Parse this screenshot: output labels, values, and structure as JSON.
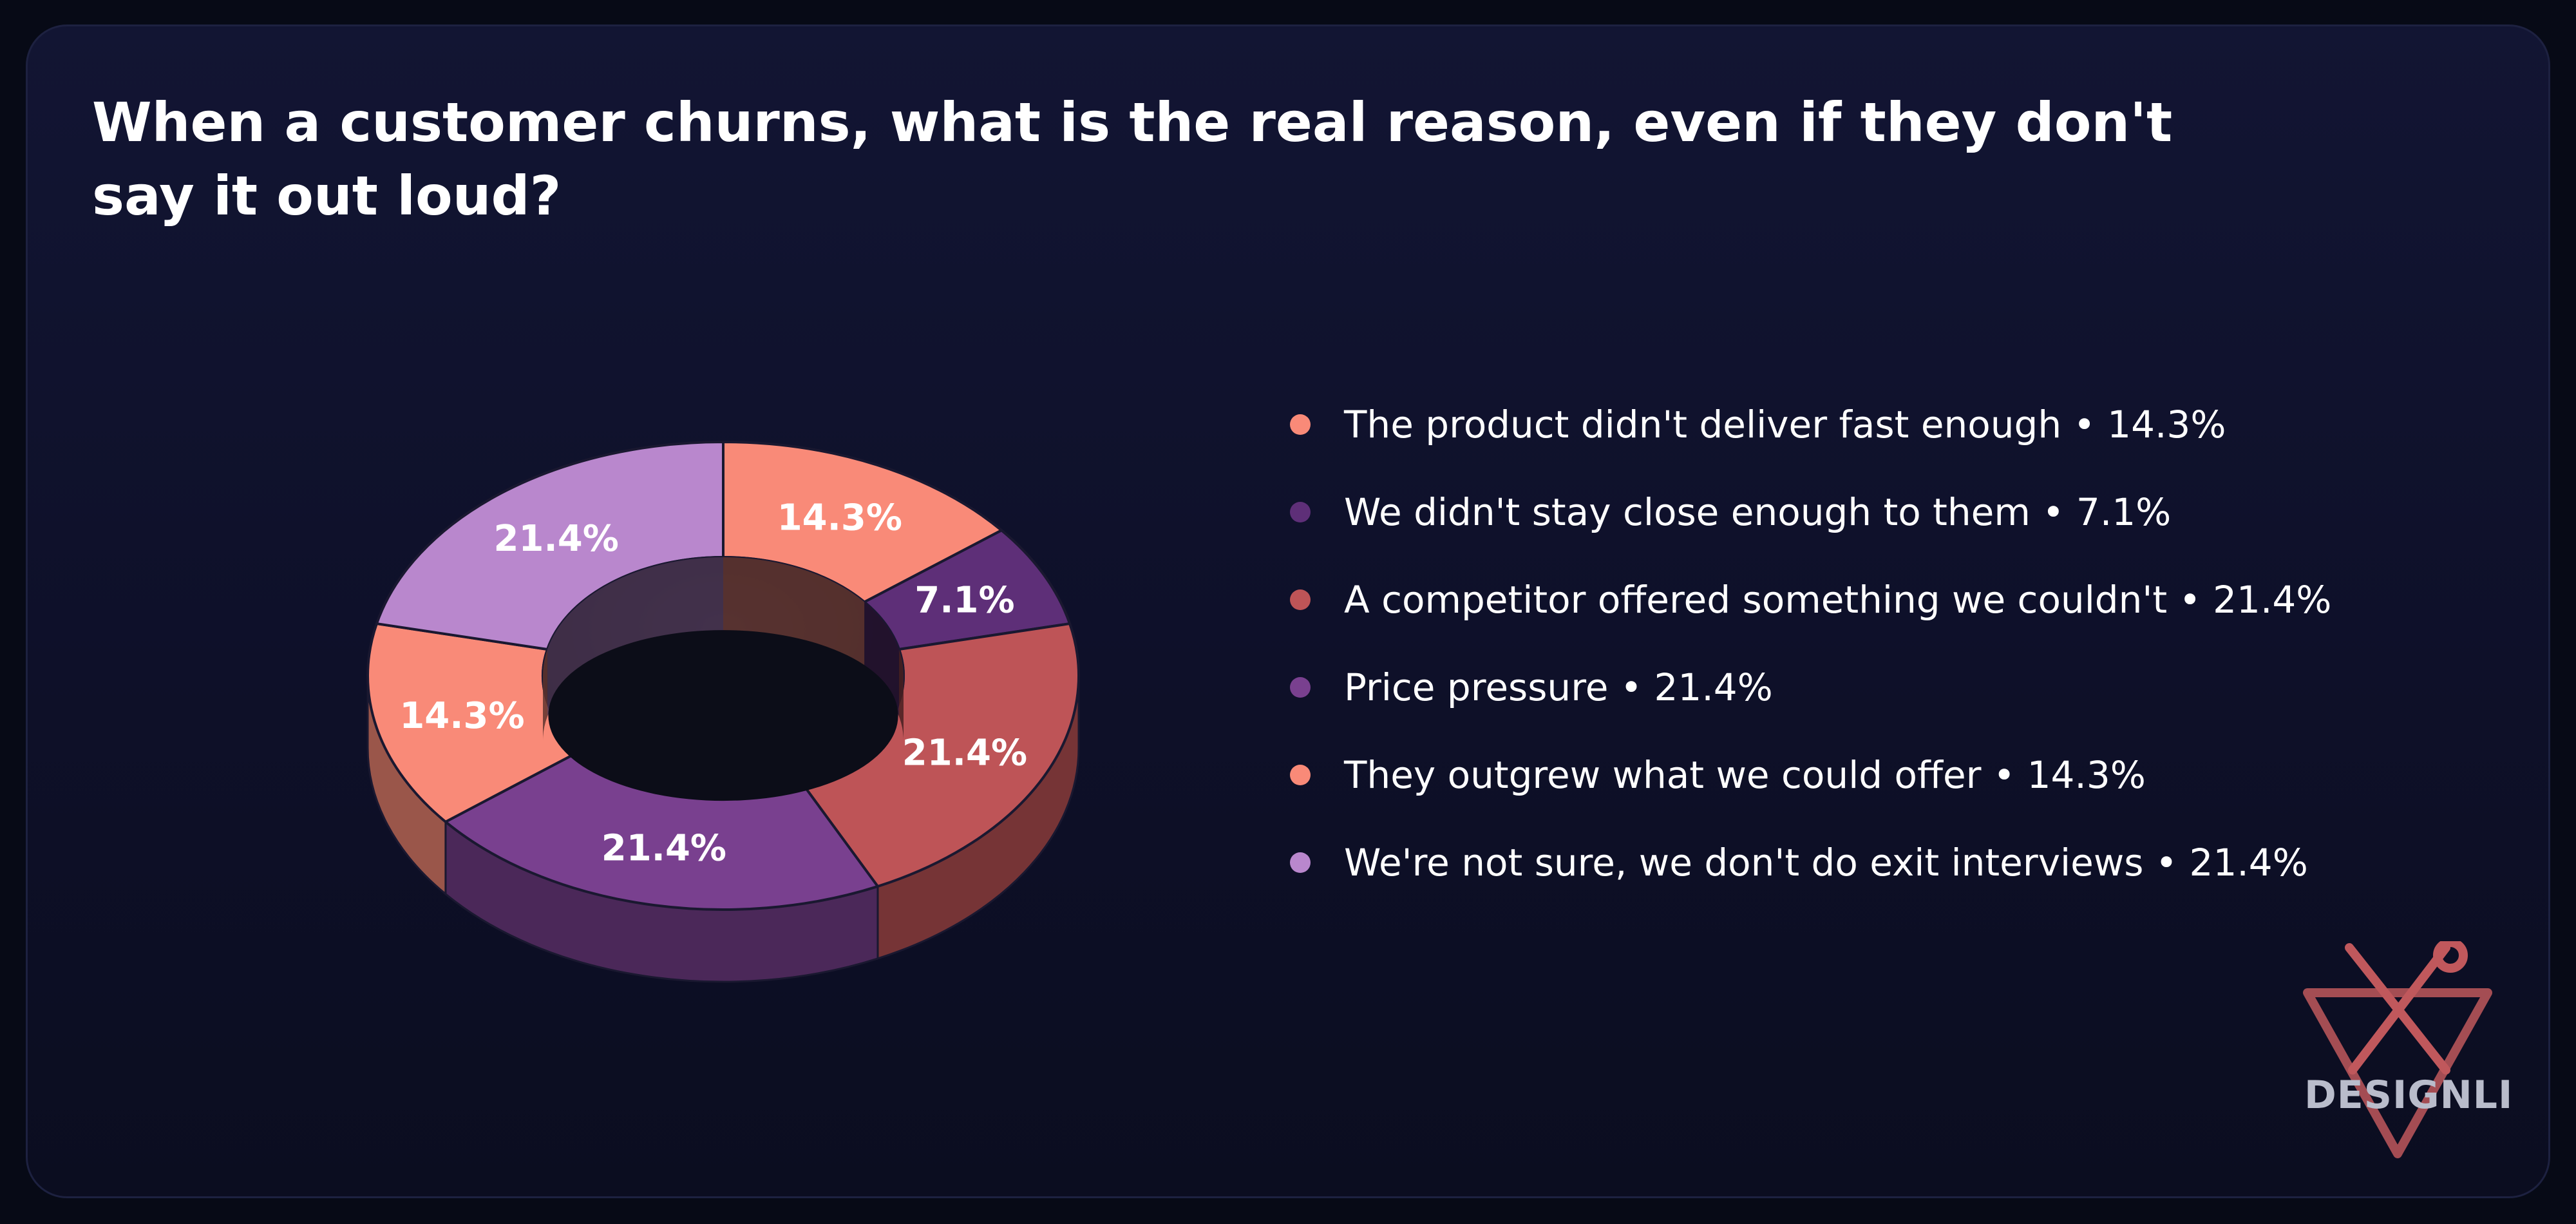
{
  "title": "When a customer churns, what is the real reason, even if they don't say it out loud?",
  "chart_data": {
    "type": "pie",
    "style": "3d-donut",
    "categories": [
      "The product didn't deliver fast enough",
      "We didn't stay close enough to them",
      "A competitor offered something we couldn't",
      "Price pressure",
      "They outgrew what we could offer",
      "We're not sure, we don't do exit interviews"
    ],
    "values": [
      14.3,
      7.1,
      21.4,
      21.4,
      14.3,
      21.4
    ],
    "labels": [
      "14.3%",
      "7.1%",
      "21.4%",
      "21.4%",
      "14.3%",
      "21.4%"
    ],
    "colors": [
      "#f98a78",
      "#5e2f78",
      "#be5457",
      "#79408f",
      "#f98a78",
      "#b987cd"
    ],
    "legend_position": "right"
  },
  "legend": [
    "The product didn't deliver fast enough • 14.3%",
    "We didn't stay close enough to them • 7.1%",
    "A competitor offered something we couldn't • 21.4%",
    "Price pressure • 21.4%",
    "They outgrew what we could offer • 14.3%",
    "We're not sure, we don't do exit interviews • 21.4%"
  ],
  "logo": {
    "text": "DESIGNLI",
    "icon": "wrench-screwdriver-triangle-icon",
    "color": "#c0585c"
  }
}
